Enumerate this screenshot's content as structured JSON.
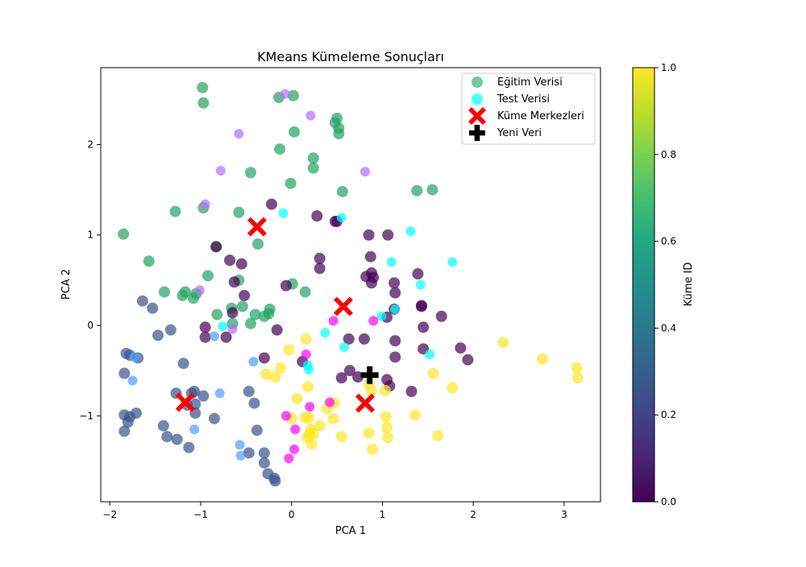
{
  "chart_data": {
    "type": "scatter",
    "title": "KMeans Kümeleme Sonuçları",
    "xlabel": "PCA 1",
    "ylabel": "PCA 2",
    "xlim": [
      -2.1,
      3.4
    ],
    "ylim": [
      -1.95,
      2.85
    ],
    "x_ticks": [
      "−2",
      "−1",
      "0",
      "1",
      "2",
      "3"
    ],
    "y_ticks": [
      "−1",
      "0",
      "1",
      "2"
    ],
    "x_tick_values": [
      -2,
      -1,
      0,
      1,
      2,
      3
    ],
    "y_tick_values": [
      -1,
      0,
      1,
      2
    ],
    "grid": false,
    "legend_placement": "top-right",
    "colorbar": {
      "label": "Küme ID",
      "range": [
        0.0,
        1.0
      ],
      "colormap": "viridis",
      "tick_values": [
        0,
        0.2,
        0.4,
        0.6,
        0.8,
        1.0
      ],
      "ticks": [
        "0.0",
        "0.2",
        "0.4",
        "0.6",
        "0.8",
        "1.0"
      ]
    },
    "colors": {
      "cluster_0": "#440154",
      "cluster_1": "#3b528b",
      "cluster_2": "#21a364",
      "cluster_3": "#fde725",
      "test_cluster_0": "#ff00ff",
      "test_cluster_1": "#4d9fff",
      "test_cluster_2": "#b46cff",
      "test_cluster_3": "#00ffff",
      "centers": "#ff0000",
      "new_point": "#000000"
    },
    "legend": [
      {
        "label": "Eğitim Verisi",
        "marker": "circle",
        "color": "#3cb371"
      },
      {
        "label": "Test Verisi",
        "marker": "circle",
        "color": "#00ffff"
      },
      {
        "label": "Küme Merkezleri",
        "marker": "x",
        "color": "#ff0000"
      },
      {
        "label": "Yeni Veri",
        "marker": "plus",
        "color": "#000000"
      }
    ],
    "series": [
      {
        "name": "Eğitim Verisi",
        "points": [
          [
            -0.98,
            2.63,
            2
          ],
          [
            -0.97,
            2.46,
            2
          ],
          [
            -0.14,
            2.52,
            2
          ],
          [
            0.02,
            2.54,
            2
          ],
          [
            0.5,
            2.29,
            2
          ],
          [
            0.52,
            2.18,
            2
          ],
          [
            0.52,
            2.12,
            2
          ],
          [
            0.48,
            2.24,
            2
          ],
          [
            0.03,
            2.14,
            2
          ],
          [
            -0.13,
            1.95,
            2
          ],
          [
            0.24,
            1.85,
            2
          ],
          [
            0.24,
            1.74,
            2
          ],
          [
            -0.45,
            1.69,
            2
          ],
          [
            -0.01,
            1.57,
            2
          ],
          [
            0.56,
            1.48,
            2
          ],
          [
            1.38,
            1.49,
            2
          ],
          [
            1.55,
            1.5,
            2
          ],
          [
            -1.28,
            1.26,
            2
          ],
          [
            -0.97,
            1.3,
            2
          ],
          [
            -0.58,
            1.25,
            2
          ],
          [
            -1.85,
            1.01,
            2
          ],
          [
            -1.57,
            0.71,
            2
          ],
          [
            -0.37,
            0.9,
            2
          ],
          [
            -0.83,
            0.87,
            2
          ],
          [
            -0.92,
            0.55,
            2
          ],
          [
            -0.58,
            0.5,
            2
          ],
          [
            -1.4,
            0.37,
            2
          ],
          [
            -1.17,
            0.37,
            2
          ],
          [
            -1.2,
            0.33,
            2
          ],
          [
            -1.08,
            0.3,
            2
          ],
          [
            -1.05,
            0.35,
            2
          ],
          [
            0.01,
            0.46,
            2
          ],
          [
            0.15,
            0.37,
            2
          ],
          [
            -0.82,
            0.12,
            2
          ],
          [
            -0.66,
            0.19,
            2
          ],
          [
            -0.54,
            0.21,
            2
          ],
          [
            -0.4,
            0.12,
            2
          ],
          [
            -0.3,
            0.1,
            2
          ],
          [
            -0.24,
            0.18,
            2
          ],
          [
            -0.25,
            0.13,
            2
          ],
          [
            -0.45,
            0.02,
            2
          ],
          [
            -0.65,
            0.02,
            2
          ],
          [
            -0.22,
            1.34,
            0
          ],
          [
            0.28,
            1.21,
            0
          ],
          [
            0.5,
            1.15,
            0
          ],
          [
            0.48,
            1.15,
            0
          ],
          [
            -0.83,
            0.87,
            0
          ],
          [
            0.31,
            0.74,
            0
          ],
          [
            0.31,
            0.63,
            0
          ],
          [
            -0.68,
            0.72,
            0
          ],
          [
            -0.55,
            0.68,
            0
          ],
          [
            -0.63,
            0.48,
            0
          ],
          [
            -0.52,
            0.33,
            0
          ],
          [
            -0.06,
            0.44,
            0
          ],
          [
            -0.65,
            0.14,
            0
          ],
          [
            -0.95,
            -0.02,
            0
          ],
          [
            -0.95,
            -0.13,
            0
          ],
          [
            -0.72,
            -0.13,
            0
          ],
          [
            -0.16,
            -0.05,
            0
          ],
          [
            0.85,
            1.0,
            0
          ],
          [
            1.06,
            1.0,
            0
          ],
          [
            0.87,
            0.76,
            0
          ],
          [
            0.82,
            0.54,
            0
          ],
          [
            0.88,
            0.58,
            0
          ],
          [
            0.88,
            0.47,
            0
          ],
          [
            0.9,
            0.53,
            0
          ],
          [
            1.13,
            0.47,
            0
          ],
          [
            1.14,
            0.36,
            0
          ],
          [
            1.39,
            0.57,
            0
          ],
          [
            1.13,
            0.18,
            0
          ],
          [
            1.05,
            0.09,
            0
          ],
          [
            1.43,
            0.22,
            0
          ],
          [
            1.43,
            0.21,
            0
          ],
          [
            1.65,
            0.1,
            0
          ],
          [
            1.45,
            -0.02,
            0
          ],
          [
            1.14,
            -0.17,
            0
          ],
          [
            0.8,
            -0.15,
            0
          ],
          [
            0.63,
            -0.15,
            0
          ],
          [
            1.45,
            -0.26,
            0
          ],
          [
            1.86,
            -0.25,
            0
          ],
          [
            1.94,
            -0.38,
            0
          ],
          [
            1.14,
            -0.35,
            0
          ],
          [
            0.55,
            -0.58,
            0
          ],
          [
            0.64,
            -0.5,
            0
          ],
          [
            0.73,
            -0.57,
            0
          ],
          [
            1.05,
            -0.6,
            0
          ],
          [
            1.08,
            -0.67,
            0
          ],
          [
            1.32,
            -0.73,
            0
          ],
          [
            -0.3,
            -0.36,
            0
          ],
          [
            0.12,
            -0.4,
            0
          ],
          [
            -1.82,
            -0.31,
            1
          ],
          [
            -1.78,
            -0.33,
            1
          ],
          [
            -1.69,
            -0.36,
            1
          ],
          [
            -1.64,
            0.27,
            1
          ],
          [
            -1.53,
            0.19,
            1
          ],
          [
            -1.47,
            -0.11,
            1
          ],
          [
            -1.33,
            -0.05,
            1
          ],
          [
            -1.19,
            -0.42,
            1
          ],
          [
            -1.84,
            -0.53,
            1
          ],
          [
            -1.27,
            -0.75,
            1
          ],
          [
            -1.1,
            -0.75,
            1
          ],
          [
            -1.07,
            -0.73,
            1
          ],
          [
            -1.06,
            -0.87,
            1
          ],
          [
            -0.97,
            -0.78,
            1
          ],
          [
            -1.06,
            -0.97,
            1
          ],
          [
            -1.15,
            -0.88,
            1
          ],
          [
            -1.84,
            -0.99,
            1
          ],
          [
            -1.78,
            -1.01,
            1
          ],
          [
            -1.8,
            -1.07,
            1
          ],
          [
            -1.71,
            -0.97,
            1
          ],
          [
            -1.84,
            -1.17,
            1
          ],
          [
            -1.41,
            -1.11,
            1
          ],
          [
            -1.37,
            -1.23,
            1
          ],
          [
            -1.26,
            -1.26,
            1
          ],
          [
            -1.13,
            -1.35,
            1
          ],
          [
            -0.85,
            -1.03,
            1
          ],
          [
            -0.47,
            -0.73,
            1
          ],
          [
            -0.41,
            -0.86,
            1
          ],
          [
            -0.38,
            -1.16,
            1
          ],
          [
            -0.47,
            -1.41,
            1
          ],
          [
            -0.3,
            -1.41,
            1
          ],
          [
            -0.3,
            -1.52,
            1
          ],
          [
            -0.26,
            -1.64,
            1
          ],
          [
            -0.19,
            -1.69,
            1
          ],
          [
            -0.18,
            -1.72,
            1
          ],
          [
            0.16,
            -0.15,
            3
          ],
          [
            -0.03,
            -0.27,
            3
          ],
          [
            -0.12,
            -0.47,
            3
          ],
          [
            -0.28,
            -0.54,
            3
          ],
          [
            -0.18,
            -0.57,
            3
          ],
          [
            0.18,
            -0.68,
            3
          ],
          [
            0.06,
            -0.81,
            3
          ],
          [
            0.47,
            -0.86,
            3
          ],
          [
            0.39,
            -0.92,
            3
          ],
          [
            0.0,
            -1.03,
            3
          ],
          [
            0.15,
            -1.02,
            3
          ],
          [
            0.19,
            -1.02,
            3
          ],
          [
            0.46,
            -1.03,
            3
          ],
          [
            0.31,
            -1.11,
            3
          ],
          [
            0.21,
            -1.15,
            3
          ],
          [
            0.2,
            -1.2,
            3
          ],
          [
            0.24,
            -1.2,
            3
          ],
          [
            0.55,
            -1.23,
            3
          ],
          [
            0.17,
            -1.24,
            3
          ],
          [
            0.22,
            -1.31,
            3
          ],
          [
            0.85,
            -0.65,
            3
          ],
          [
            0.88,
            -0.72,
            3
          ],
          [
            1.03,
            -0.72,
            3
          ],
          [
            0.85,
            -1.19,
            3
          ],
          [
            0.89,
            -1.37,
            3
          ],
          [
            1.04,
            -1.01,
            3
          ],
          [
            1.05,
            -1.13,
            3
          ],
          [
            1.06,
            -1.24,
            3
          ],
          [
            1.36,
            -0.99,
            3
          ],
          [
            1.56,
            -0.53,
            3
          ],
          [
            1.77,
            -0.69,
            3
          ],
          [
            1.61,
            -1.22,
            3
          ],
          [
            2.33,
            -0.19,
            3
          ],
          [
            2.76,
            -0.37,
            3
          ],
          [
            3.14,
            -0.47,
            3
          ],
          [
            3.15,
            -0.58,
            3
          ]
        ]
      },
      {
        "name": "Test Verisi",
        "points": [
          [
            -0.07,
            2.56,
            2
          ],
          [
            0.21,
            2.32,
            2
          ],
          [
            -0.58,
            2.12,
            2
          ],
          [
            -0.78,
            1.71,
            2
          ],
          [
            0.81,
            1.7,
            2
          ],
          [
            -0.95,
            1.34,
            2
          ],
          [
            -1.01,
            0.39,
            2
          ],
          [
            -0.65,
            -0.04,
            2
          ],
          [
            -0.09,
            1.24,
            3
          ],
          [
            0.55,
            1.19,
            3
          ],
          [
            1.31,
            1.04,
            3
          ],
          [
            1.1,
            0.7,
            3
          ],
          [
            1.77,
            0.7,
            3
          ],
          [
            1.42,
            0.45,
            3
          ],
          [
            0.99,
            0.1,
            3
          ],
          [
            1.14,
            0.18,
            3
          ],
          [
            -0.76,
            -0.01,
            3
          ],
          [
            0.37,
            -0.08,
            3
          ],
          [
            0.58,
            -0.24,
            3
          ],
          [
            1.52,
            -0.32,
            3
          ],
          [
            0.18,
            -0.44,
            3
          ],
          [
            0.19,
            -0.49,
            3
          ],
          [
            -0.85,
            -0.12,
            1
          ],
          [
            -1.73,
            -0.35,
            1
          ],
          [
            -1.75,
            -0.61,
            1
          ],
          [
            -0.42,
            -0.4,
            1
          ],
          [
            -0.79,
            -0.75,
            1
          ],
          [
            -1.07,
            -1.15,
            1
          ],
          [
            -0.57,
            -1.32,
            1
          ],
          [
            -0.56,
            -1.44,
            1
          ],
          [
            0.46,
            0.05,
            0
          ],
          [
            0.9,
            0.05,
            0
          ],
          [
            0.16,
            -0.32,
            0
          ],
          [
            0.42,
            -0.85,
            0
          ],
          [
            0.2,
            -0.9,
            0
          ],
          [
            -0.06,
            -1.0,
            0
          ],
          [
            0.04,
            -1.15,
            0
          ],
          [
            0.03,
            -1.37,
            0
          ],
          [
            -0.03,
            -1.47,
            0
          ]
        ]
      },
      {
        "name": "Küme Merkezleri",
        "points": [
          [
            -0.38,
            1.09
          ],
          [
            0.57,
            0.21
          ],
          [
            -1.17,
            -0.85
          ],
          [
            0.81,
            -0.86
          ]
        ]
      },
      {
        "name": "Yeni Veri",
        "points": [
          [
            0.86,
            -0.55
          ]
        ]
      }
    ]
  }
}
